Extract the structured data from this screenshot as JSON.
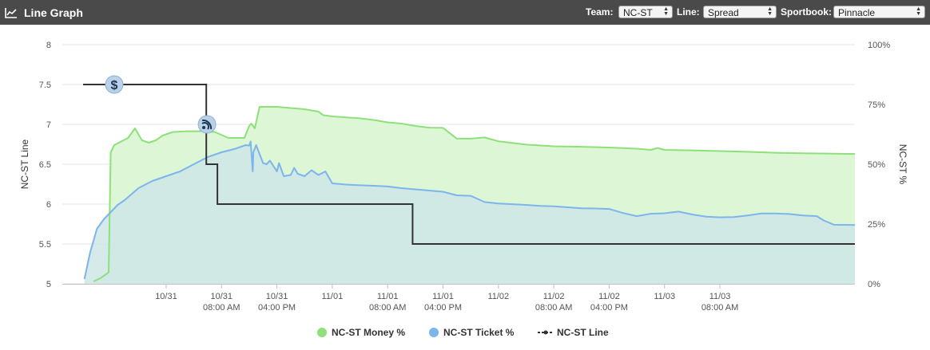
{
  "header": {
    "title": "Line Graph",
    "team_label": "Team:",
    "team_value": "NC-ST",
    "line_label": "Line:",
    "line_value": "Spread",
    "sportsbook_label": "Sportbook:",
    "sportsbook_value": "Pinnacle"
  },
  "colors": {
    "header_bg": "#4a4a4a",
    "money": "#8de07a",
    "money_fill": "#ddf7d6",
    "ticket": "#7cb5ec",
    "ticket_fill": "#cfe6e6",
    "line": "#333333"
  },
  "legend": {
    "money": "NC-ST Money %",
    "ticket": "NC-ST Ticket %",
    "line": "NC-ST Line"
  },
  "chart_data": {
    "type": "line",
    "title": "",
    "ylabel_left": "NC-ST Line",
    "ylabel_right": "NC-ST %",
    "ylim_left": [
      5,
      8
    ],
    "ylim_right": [
      0,
      100
    ],
    "left_ticks": [
      "5",
      "5.5",
      "6",
      "6.5",
      "7",
      "7.5",
      "8"
    ],
    "right_ticks": [
      "0%",
      "25%",
      "50%",
      "75%",
      "100%"
    ],
    "x_unit": "hours since 10/30 12:00 PM",
    "x_range": [
      -3,
      111.5
    ],
    "x_ticks": [
      {
        "x": 12,
        "line1": "10/31",
        "line2": ""
      },
      {
        "x": 20,
        "line1": "10/31",
        "line2": "08:00 AM"
      },
      {
        "x": 28,
        "line1": "10/31",
        "line2": "04:00 PM"
      },
      {
        "x": 36,
        "line1": "11/01",
        "line2": ""
      },
      {
        "x": 44,
        "line1": "11/01",
        "line2": "08:00 AM"
      },
      {
        "x": 52,
        "line1": "11/01",
        "line2": "04:00 PM"
      },
      {
        "x": 60,
        "line1": "11/02",
        "line2": ""
      },
      {
        "x": 68,
        "line1": "11/02",
        "line2": "08:00 AM"
      },
      {
        "x": 76,
        "line1": "11/02",
        "line2": "04:00 PM"
      },
      {
        "x": 84,
        "line1": "11/03",
        "line2": ""
      },
      {
        "x": 92,
        "line1": "11/03",
        "line2": "08:00 AM"
      }
    ],
    "grid": true,
    "legend_position": "bottom",
    "series": [
      {
        "name": "NC-ST Money %",
        "axis": "right",
        "x": [
          1.5,
          2.6,
          3.7,
          4.0,
          4.5,
          5.5,
          6.5,
          7.5,
          8.5,
          9.5,
          10.5,
          11.5,
          13,
          15,
          17,
          19,
          21,
          23.3,
          24.0,
          24.3,
          24.8,
          25.5,
          26.5,
          28,
          30,
          32,
          34,
          34.7,
          36,
          38,
          40,
          42,
          44,
          46,
          48,
          50,
          52,
          54,
          56,
          58,
          60,
          64,
          68,
          72,
          76,
          80,
          82,
          83,
          84,
          88,
          92,
          96,
          100,
          104,
          108.5,
          111.5
        ],
        "y": [
          1,
          2.5,
          4.8,
          55,
          58,
          59.5,
          61,
          65,
          60,
          59,
          60,
          62,
          63.5,
          63.8,
          63.8,
          63.5,
          61,
          61,
          66,
          67,
          65,
          74,
          74,
          74,
          73.5,
          73,
          72,
          70.5,
          70,
          69.6,
          69.2,
          68.5,
          67.5,
          67,
          66,
          65.3,
          65.2,
          60.7,
          60.7,
          61.2,
          59.6,
          58.2,
          57.5,
          57.3,
          57.0,
          56.5,
          56.0,
          56.8,
          56.0,
          55.8,
          55.5,
          55.2,
          54.8,
          54.6,
          54.4,
          54.3
        ]
      },
      {
        "name": "NC-ST Ticket %",
        "axis": "right",
        "x": [
          0.2,
          1,
          2,
          3,
          4,
          5,
          6,
          8,
          10,
          12,
          14,
          16,
          18,
          20,
          22,
          23.5,
          24.0,
          24.2,
          24.5,
          24.6,
          25,
          26,
          26.5,
          27,
          28,
          28.3,
          29,
          30,
          30.5,
          31,
          32,
          33,
          34,
          35,
          36,
          38,
          40,
          42,
          44,
          46,
          48,
          50,
          52,
          54,
          56,
          58,
          60,
          62,
          64,
          66,
          68,
          70,
          72,
          74,
          76,
          78,
          80,
          82,
          84,
          86,
          88,
          90,
          92,
          94,
          96,
          98,
          100,
          102,
          104,
          106,
          107,
          108.5,
          111.5
        ],
        "y": [
          2,
          13,
          23,
          27,
          30,
          33,
          35,
          40,
          43,
          45,
          47,
          50,
          53,
          55,
          56.5,
          58,
          57.8,
          59.5,
          47,
          55,
          58,
          50.5,
          50,
          51.5,
          47,
          50.5,
          45,
          45.5,
          48.5,
          46,
          45,
          47.5,
          45.5,
          47,
          42,
          41.5,
          41.2,
          41.0,
          40.7,
          40.0,
          39.5,
          39.0,
          38.5,
          37.0,
          36.8,
          34.2,
          33.6,
          33.3,
          33.0,
          32.6,
          32.4,
          32.0,
          31.6,
          31.5,
          31.3,
          29.6,
          28.3,
          29.3,
          29.5,
          30.2,
          29.0,
          28.1,
          27.8,
          27.9,
          28.6,
          29.4,
          29.4,
          29.2,
          28.6,
          28.3,
          26.5,
          24.7,
          24.6
        ]
      },
      {
        "name": "NC-ST Line",
        "axis": "left",
        "x": [
          0,
          17.8,
          17.8,
          19.4,
          19.4,
          47.6,
          47.6,
          111.5
        ],
        "y": [
          7.5,
          7.5,
          6.5,
          6.5,
          6.0,
          6.0,
          5.5,
          5.5
        ],
        "markers": [
          {
            "x": 4.5,
            "y": 7.5,
            "type": "money-event"
          },
          {
            "x": 17.9,
            "y": 7.0,
            "type": "news-event"
          }
        ]
      }
    ]
  }
}
